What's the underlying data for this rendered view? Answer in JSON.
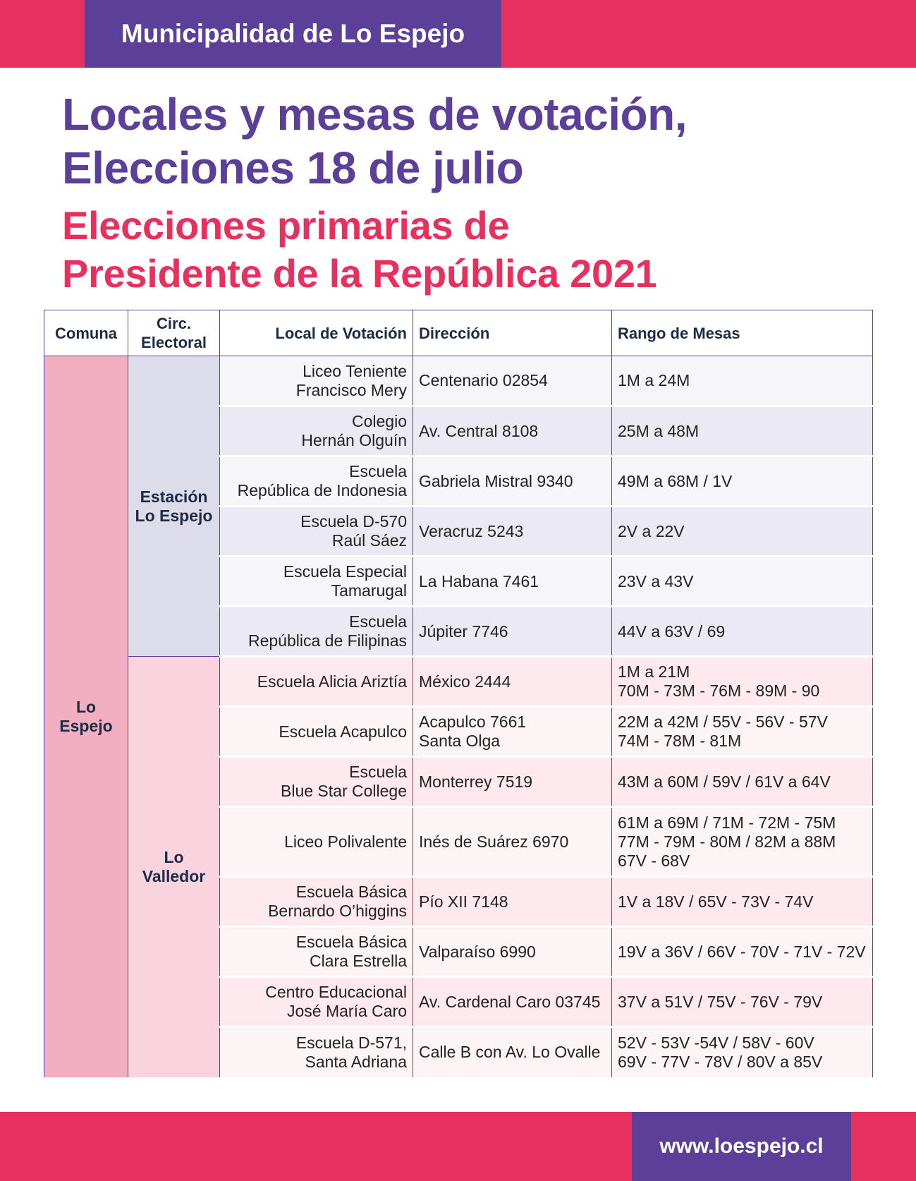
{
  "header": {
    "brand": "Municipalidad de Lo Espejo"
  },
  "title": {
    "line1": "Locales y mesas de votación,",
    "line2": "Elecciones 18 de julio",
    "sub1": "Elecciones primarias de",
    "sub2": "Presidente de la República 2021"
  },
  "table": {
    "headers": {
      "comuna": "Comuna",
      "circ": "Circ.\nElectoral",
      "local": "Local de Votación",
      "direccion": "Dirección",
      "rango": "Rango de Mesas"
    },
    "comuna": "Lo\nEspejo",
    "circ_a": "Estación\nLo Espejo",
    "circ_b": "Lo\nValledor",
    "rows": [
      {
        "local": "Liceo Teniente\nFrancisco Mery",
        "direccion": "Centenario 02854",
        "rango": "1M a 24M"
      },
      {
        "local": "Colegio\nHernán Olguín",
        "direccion": "Av. Central 8108",
        "rango": "25M a 48M"
      },
      {
        "local": "Escuela\nRepública de Indonesia",
        "direccion": "Gabriela Mistral 9340",
        "rango": "49M a 68M   /   1V"
      },
      {
        "local": "Escuela D-570\nRaúl Sáez",
        "direccion": "Veracruz 5243",
        "rango": "2V a 22V"
      },
      {
        "local": "Escuela Especial\nTamarugal",
        "direccion": "La Habana 7461",
        "rango": "23V a 43V"
      },
      {
        "local": "Escuela\nRepública de Filipinas",
        "direccion": " Júpiter 7746",
        "rango": "44V a 63V   /   69"
      },
      {
        "local": "Escuela Alicia Ariztía",
        "direccion": "México 2444",
        "rango": "1M a 21M\n70M - 73M - 76M - 89M - 90"
      },
      {
        "local": "Escuela Acapulco",
        "direccion": "Acapulco 7661\nSanta Olga",
        "rango": "22M a 42M   /   55V - 56V - 57V\n74M - 78M - 81M"
      },
      {
        "local": "Escuela\nBlue Star College",
        "direccion": "Monterrey 7519",
        "rango": "43M a 60M   /   59V   /   61V a 64V"
      },
      {
        "local": "Liceo Polivalente",
        "direccion": "Inés de Suárez 6970",
        "rango": "61M a 69M   /   71M - 72M - 75M\n77M - 79M - 80M   /   82M a 88M\n67V - 68V"
      },
      {
        "local": "Escuela Básica\nBernardo O’higgins",
        "direccion": "Pío XII 7148",
        "rango": "1V a 18V   /   65V - 73V - 74V"
      },
      {
        "local": "Escuela Básica\nClara Estrella",
        "direccion": "Valparaíso 6990",
        "rango": "19V a 36V  /  66V - 70V - 71V - 72V"
      },
      {
        "local": "Centro Educacional\nJosé María Caro",
        "direccion": "Av. Cardenal Caro 03745",
        "rango": "37V a 51V   /   75V - 76V - 79V"
      },
      {
        "local": "Escuela D-571,\nSanta Adriana",
        "direccion": "Calle B con Av. Lo Ovalle",
        "rango": "52V - 53V -54V   /   58V - 60V\n69V - 77V - 78V   /   80V a 85V"
      }
    ]
  },
  "footer": {
    "url": "www.loespejo.cl"
  },
  "colors": {
    "purple": "#5b3f98",
    "pink": "#e8305e"
  }
}
